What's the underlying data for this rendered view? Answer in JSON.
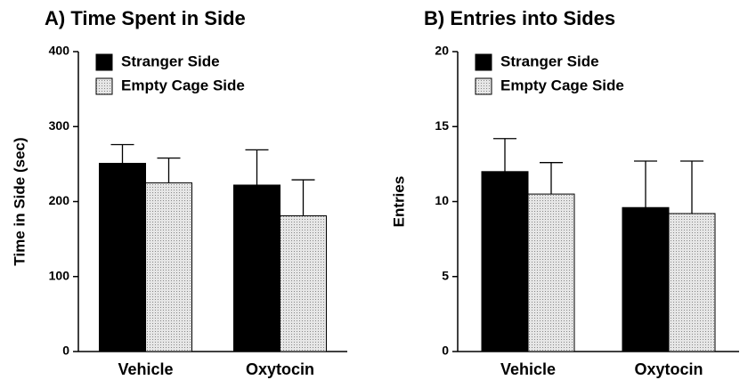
{
  "chart_data": [
    {
      "type": "bar",
      "title": "A)  Time Spent in Side",
      "ylabel": "Time in Side (sec)",
      "categories": [
        "Vehicle",
        "Oxytocin"
      ],
      "series": [
        {
          "name": "Stranger Side",
          "color": "#000000",
          "values": [
            251,
            222
          ],
          "errors": [
            25,
            47
          ]
        },
        {
          "name": "Empty Cage Side",
          "color": "#d4d4d4",
          "values": [
            225,
            181
          ],
          "errors": [
            33,
            48
          ]
        }
      ],
      "ylim": [
        0,
        400
      ],
      "yticks": [
        0,
        100,
        200,
        300,
        400
      ]
    },
    {
      "type": "bar",
      "title": "B)  Entries into Sides",
      "ylabel": "Entries",
      "categories": [
        "Vehicle",
        "Oxytocin"
      ],
      "series": [
        {
          "name": "Stranger Side",
          "color": "#000000",
          "values": [
            12.0,
            9.6
          ],
          "errors": [
            2.2,
            3.1
          ]
        },
        {
          "name": "Empty Cage Side",
          "color": "#d4d4d4",
          "values": [
            10.5,
            9.2
          ],
          "errors": [
            2.1,
            3.5
          ]
        }
      ],
      "ylim": [
        0,
        20
      ],
      "yticks": [
        0,
        5,
        10,
        15,
        20
      ]
    }
  ]
}
